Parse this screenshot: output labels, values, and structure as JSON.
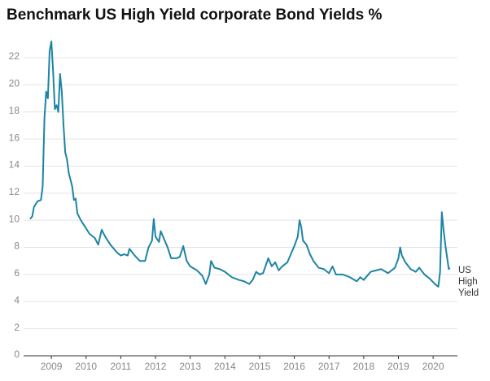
{
  "chart_data": {
    "type": "line",
    "title": "Benchmark US High Yield corporate Bond Yields %",
    "x": [
      2008.39,
      2008.45,
      2008.5,
      2008.6,
      2008.7,
      2008.75,
      2008.8,
      2008.85,
      2008.9,
      2008.95,
      2009.0,
      2009.05,
      2009.1,
      2009.15,
      2009.2,
      2009.25,
      2009.3,
      2009.35,
      2009.4,
      2009.45,
      2009.5,
      2009.55,
      2009.6,
      2009.65,
      2009.7,
      2009.75,
      2009.85,
      2009.95,
      2010.1,
      2010.25,
      2010.35,
      2010.45,
      2010.55,
      2010.7,
      2010.9,
      2011.0,
      2011.1,
      2011.2,
      2011.25,
      2011.4,
      2011.55,
      2011.7,
      2011.8,
      2011.9,
      2011.95,
      2012.0,
      2012.1,
      2012.15,
      2012.25,
      2012.35,
      2012.45,
      2012.6,
      2012.7,
      2012.8,
      2012.9,
      2013.0,
      2013.2,
      2013.35,
      2013.45,
      2013.55,
      2013.6,
      2013.7,
      2013.85,
      2014.0,
      2014.2,
      2014.4,
      2014.55,
      2014.7,
      2014.8,
      2014.9,
      2015.0,
      2015.1,
      2015.25,
      2015.35,
      2015.45,
      2015.55,
      2015.65,
      2015.8,
      2015.9,
      2016.0,
      2016.1,
      2016.15,
      2016.2,
      2016.25,
      2016.35,
      2016.45,
      2016.55,
      2016.7,
      2016.85,
      2017.0,
      2017.1,
      2017.2,
      2017.4,
      2017.6,
      2017.8,
      2017.9,
      2018.0,
      2018.1,
      2018.2,
      2018.35,
      2018.5,
      2018.7,
      2018.9,
      2019.0,
      2019.05,
      2019.1,
      2019.2,
      2019.35,
      2019.5,
      2019.6,
      2019.75,
      2019.9,
      2020.05,
      2020.15,
      2020.2,
      2020.25,
      2020.3,
      2020.35,
      2020.4,
      2020.45,
      2020.48
    ],
    "series": [
      {
        "name": "US High Yield",
        "color": "#1d84a3",
        "values": [
          10.1,
          10.3,
          11.0,
          11.4,
          11.5,
          12.5,
          17.5,
          19.5,
          19.0,
          22.5,
          23.2,
          21.0,
          18.2,
          18.5,
          18.0,
          20.8,
          19.5,
          17.0,
          15.0,
          14.5,
          13.5,
          13.0,
          12.5,
          11.5,
          11.6,
          10.5,
          10.0,
          9.6,
          9.0,
          8.7,
          8.2,
          9.3,
          8.8,
          8.2,
          7.6,
          7.4,
          7.5,
          7.4,
          7.9,
          7.4,
          7.0,
          7.0,
          8.0,
          8.5,
          10.1,
          8.8,
          8.4,
          9.2,
          8.6,
          8.0,
          7.2,
          7.2,
          7.3,
          8.1,
          7.0,
          6.6,
          6.3,
          5.9,
          5.3,
          6.0,
          7.0,
          6.5,
          6.4,
          6.2,
          5.8,
          5.6,
          5.5,
          5.3,
          5.6,
          6.2,
          6.0,
          6.1,
          7.2,
          6.6,
          6.9,
          6.3,
          6.6,
          6.9,
          7.5,
          8.1,
          8.8,
          10.0,
          9.5,
          8.5,
          8.2,
          7.5,
          7.0,
          6.5,
          6.4,
          6.1,
          6.6,
          6.0,
          6.0,
          5.8,
          5.5,
          5.8,
          5.6,
          5.9,
          6.2,
          6.3,
          6.4,
          6.1,
          6.5,
          7.2,
          8.0,
          7.4,
          6.9,
          6.4,
          6.2,
          6.5,
          6.0,
          5.7,
          5.3,
          5.1,
          6.2,
          10.6,
          9.3,
          8.2,
          7.3,
          6.4,
          6.5
        ]
      }
    ],
    "xlim": [
      2008.2,
      2020.7
    ],
    "xticks": [
      2009,
      2010,
      2011,
      2012,
      2013,
      2014,
      2015,
      2016,
      2017,
      2018,
      2019,
      2020
    ],
    "ylim": [
      0,
      22
    ],
    "yticks": [
      0,
      2,
      4,
      6,
      8,
      10,
      12,
      14,
      16,
      18,
      20,
      22
    ],
    "grid": true
  }
}
